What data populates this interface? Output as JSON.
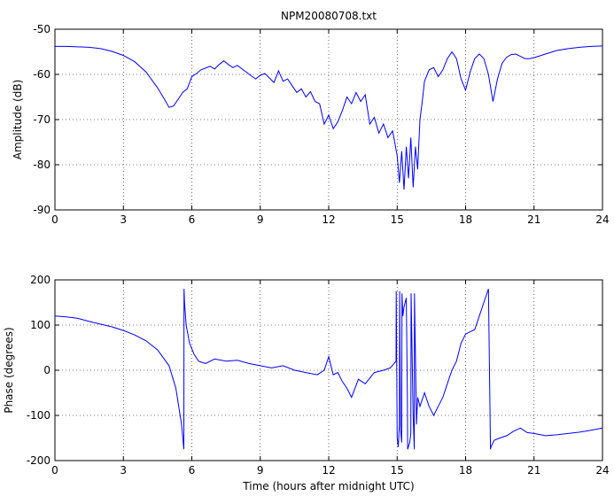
{
  "figure": {
    "title": "NPM20080708.txt",
    "xlabel": "Time (hours after midnight UTC)"
  },
  "colors": {
    "trace": "#0000ff",
    "axes": "#000000",
    "background": "#ffffff"
  },
  "chart_data": [
    {
      "type": "line",
      "title": "NPM20080708.txt",
      "xlabel": "",
      "ylabel": "Amplitude (dB)",
      "xlim": [
        0,
        24
      ],
      "ylim": [
        -90,
        -50
      ],
      "xticks": [
        0,
        3,
        6,
        9,
        12,
        15,
        18,
        21,
        24
      ],
      "yticks": [
        -90,
        -80,
        -70,
        -60,
        -50
      ],
      "grid": true,
      "series": [
        {
          "x": [
            0,
            0.5,
            1,
            1.5,
            2,
            2.5,
            3,
            3.5,
            4,
            4.5,
            4.8,
            5.0,
            5.2,
            5.4,
            5.6,
            5.8,
            6.0,
            6.2,
            6.4,
            6.6,
            6.8,
            7.0,
            7.2,
            7.4,
            7.6,
            7.8,
            8.0,
            8.2,
            8.4,
            8.6,
            8.8,
            9.0,
            9.2,
            9.4,
            9.6,
            9.8,
            10.0,
            10.2,
            10.4,
            10.6,
            10.8,
            11.0,
            11.2,
            11.4,
            11.6,
            11.8,
            12.0,
            12.2,
            12.4,
            12.6,
            12.8,
            13.0,
            13.2,
            13.4,
            13.6,
            13.8,
            14.0,
            14.2,
            14.4,
            14.6,
            14.8,
            15.0,
            15.1,
            15.2,
            15.3,
            15.4,
            15.5,
            15.6,
            15.7,
            15.8,
            15.9,
            16.0,
            16.1,
            16.2,
            16.4,
            16.6,
            16.8,
            17.0,
            17.2,
            17.4,
            17.6,
            17.8,
            18.0,
            18.2,
            18.4,
            18.6,
            18.8,
            19.0,
            19.2,
            19.4,
            19.6,
            19.8,
            20.0,
            20.2,
            20.4,
            20.6,
            20.8,
            21.0,
            21.5,
            22.0,
            22.5,
            23.0,
            23.5,
            24.0
          ],
          "y": [
            -53.8,
            -53.8,
            -53.9,
            -54.0,
            -54.3,
            -54.9,
            -55.8,
            -57.2,
            -59.5,
            -63.0,
            -65.5,
            -67.3,
            -67.0,
            -65.5,
            -64.0,
            -63.2,
            -60.5,
            -59.8,
            -59.0,
            -58.6,
            -58.2,
            -58.8,
            -57.8,
            -57.0,
            -57.8,
            -58.5,
            -58.0,
            -58.8,
            -59.5,
            -60.3,
            -61.0,
            -60.2,
            -59.8,
            -60.8,
            -61.8,
            -59.2,
            -61.5,
            -61.0,
            -62.5,
            -64.0,
            -63.2,
            -65.0,
            -63.8,
            -66.0,
            -66.5,
            -71.0,
            -69.0,
            -72.0,
            -70.5,
            -68.0,
            -65.0,
            -66.5,
            -64.0,
            -66.0,
            -64.5,
            -71.0,
            -69.5,
            -73.0,
            -71.0,
            -74.0,
            -72.5,
            -78.0,
            -84.0,
            -77.0,
            -85.5,
            -76.0,
            -83.0,
            -74.0,
            -85.0,
            -76.0,
            -81.0,
            -70.0,
            -66.0,
            -61.5,
            -59.0,
            -58.5,
            -60.5,
            -59.0,
            -56.5,
            -55.0,
            -56.5,
            -61.0,
            -63.5,
            -59.5,
            -56.5,
            -55.5,
            -56.5,
            -60.0,
            -66.0,
            -61.0,
            -57.5,
            -56.2,
            -55.6,
            -55.5,
            -56.0,
            -56.5,
            -56.5,
            -56.3,
            -55.5,
            -54.7,
            -54.3,
            -54.0,
            -53.8,
            -53.7
          ]
        }
      ]
    },
    {
      "type": "line",
      "title": "",
      "xlabel": "Time (hours after midnight UTC)",
      "ylabel": "Phase (degrees)",
      "xlim": [
        0,
        24
      ],
      "ylim": [
        -200,
        200
      ],
      "xticks": [
        0,
        3,
        6,
        9,
        12,
        15,
        18,
        21,
        24
      ],
      "yticks": [
        -200,
        -100,
        0,
        100,
        200
      ],
      "grid": true,
      "series": [
        {
          "x": [
            0,
            0.5,
            1,
            1.5,
            2,
            2.5,
            3,
            3.5,
            4,
            4.5,
            5.0,
            5.3,
            5.55,
            5.65,
            5.66,
            5.68,
            5.75,
            5.9,
            6.1,
            6.3,
            6.6,
            7.0,
            7.5,
            8.0,
            8.5,
            9.0,
            9.5,
            10.0,
            10.5,
            11.0,
            11.5,
            11.8,
            12.0,
            12.2,
            12.4,
            12.6,
            12.8,
            13.0,
            13.3,
            13.6,
            14.0,
            14.4,
            14.7,
            14.95,
            14.96,
            15.0,
            15.05,
            15.1,
            15.11,
            15.15,
            15.2,
            15.21,
            15.25,
            15.3,
            15.4,
            15.45,
            15.46,
            15.55,
            15.6,
            15.61,
            15.7,
            15.75,
            15.76,
            15.85,
            15.9,
            16.0,
            16.2,
            16.4,
            16.6,
            16.8,
            17.0,
            17.2,
            17.4,
            17.6,
            17.8,
            18.0,
            18.2,
            18.4,
            18.6,
            18.8,
            19.0,
            19.09,
            19.11,
            19.25,
            19.5,
            19.8,
            20.1,
            20.4,
            20.7,
            21.0,
            21.5,
            22.0,
            22.5,
            23.0,
            23.5,
            24.0
          ],
          "y": [
            120,
            118,
            115,
            108,
            102,
            96,
            88,
            78,
            65,
            45,
            10,
            -40,
            -120,
            -175,
            180,
            150,
            100,
            60,
            35,
            20,
            15,
            25,
            20,
            22,
            15,
            10,
            5,
            10,
            0,
            -5,
            -10,
            0,
            30,
            -10,
            -5,
            -25,
            -40,
            -60,
            -20,
            -30,
            -5,
            0,
            5,
            20,
            175,
            -150,
            -170,
            -120,
            175,
            -130,
            -160,
            170,
            120,
            140,
            160,
            -60,
            -175,
            -160,
            -140,
            170,
            -100,
            -175,
            170,
            -120,
            -60,
            -80,
            -50,
            -80,
            -100,
            -80,
            -60,
            -30,
            0,
            20,
            60,
            80,
            85,
            90,
            120,
            150,
            180,
            -175,
            -170,
            -155,
            -150,
            -145,
            -135,
            -128,
            -138,
            -140,
            -145,
            -143,
            -140,
            -137,
            -133,
            -128
          ]
        }
      ]
    }
  ]
}
